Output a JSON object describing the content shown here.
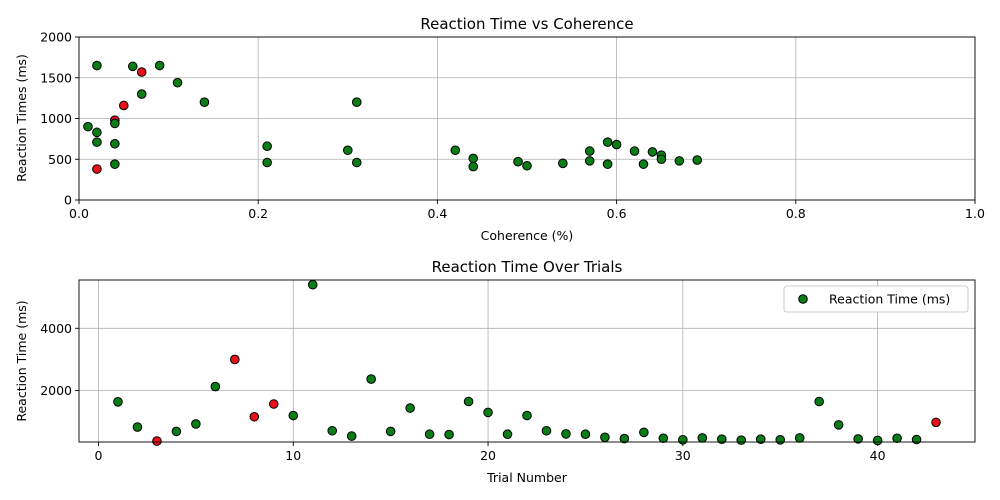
{
  "colors": {
    "normal": "#0a7d17",
    "flagged": "#e8101a"
  },
  "chart_data": [
    {
      "type": "scatter",
      "title": "Reaction Time vs Coherence",
      "xlabel": "Coherence (%)",
      "ylabel": "Reaction Times (ms)",
      "xlim": [
        0,
        1.0
      ],
      "ylim": [
        0,
        2000
      ],
      "xticks": [
        0,
        0.2,
        0.4,
        0.6,
        0.8,
        1.0
      ],
      "xtick_labels": [
        "0.0",
        "0.2",
        "0.4",
        "0.6",
        "0.8",
        "1.0"
      ],
      "yticks": [
        0,
        500,
        1000,
        1500,
        2000
      ],
      "ytick_labels": [
        "0",
        "500",
        "1000",
        "1500",
        "2000"
      ],
      "grid": true,
      "points": [
        {
          "x": 0.01,
          "y": 900,
          "flag": false
        },
        {
          "x": 0.02,
          "y": 1650,
          "flag": false
        },
        {
          "x": 0.02,
          "y": 830,
          "flag": false
        },
        {
          "x": 0.02,
          "y": 710,
          "flag": false
        },
        {
          "x": 0.02,
          "y": 380,
          "flag": true
        },
        {
          "x": 0.04,
          "y": 980,
          "flag": true
        },
        {
          "x": 0.04,
          "y": 940,
          "flag": false
        },
        {
          "x": 0.04,
          "y": 690,
          "flag": false
        },
        {
          "x": 0.04,
          "y": 440,
          "flag": false
        },
        {
          "x": 0.05,
          "y": 1160,
          "flag": true
        },
        {
          "x": 0.06,
          "y": 1640,
          "flag": false
        },
        {
          "x": 0.07,
          "y": 1570,
          "flag": true
        },
        {
          "x": 0.07,
          "y": 1300,
          "flag": false
        },
        {
          "x": 0.09,
          "y": 1650,
          "flag": false
        },
        {
          "x": 0.11,
          "y": 1440,
          "flag": false
        },
        {
          "x": 0.14,
          "y": 1200,
          "flag": false
        },
        {
          "x": 0.21,
          "y": 660,
          "flag": false
        },
        {
          "x": 0.21,
          "y": 460,
          "flag": false
        },
        {
          "x": 0.3,
          "y": 610,
          "flag": false
        },
        {
          "x": 0.31,
          "y": 1200,
          "flag": false
        },
        {
          "x": 0.31,
          "y": 460,
          "flag": false
        },
        {
          "x": 0.42,
          "y": 610,
          "flag": false
        },
        {
          "x": 0.44,
          "y": 510,
          "flag": false
        },
        {
          "x": 0.44,
          "y": 410,
          "flag": false
        },
        {
          "x": 0.49,
          "y": 470,
          "flag": false
        },
        {
          "x": 0.5,
          "y": 420,
          "flag": false
        },
        {
          "x": 0.54,
          "y": 450,
          "flag": false
        },
        {
          "x": 0.57,
          "y": 600,
          "flag": false
        },
        {
          "x": 0.57,
          "y": 480,
          "flag": false
        },
        {
          "x": 0.59,
          "y": 710,
          "flag": false
        },
        {
          "x": 0.59,
          "y": 440,
          "flag": false
        },
        {
          "x": 0.6,
          "y": 680,
          "flag": false
        },
        {
          "x": 0.62,
          "y": 600,
          "flag": false
        },
        {
          "x": 0.63,
          "y": 440,
          "flag": false
        },
        {
          "x": 0.64,
          "y": 590,
          "flag": false
        },
        {
          "x": 0.65,
          "y": 550,
          "flag": false
        },
        {
          "x": 0.65,
          "y": 500,
          "flag": false
        },
        {
          "x": 0.67,
          "y": 480,
          "flag": false
        },
        {
          "x": 0.69,
          "y": 490,
          "flag": false
        }
      ]
    },
    {
      "type": "scatter",
      "title": "Reaction Time Over Trials",
      "xlabel": "Trial Number",
      "ylabel": "Reaction Time (ms)",
      "xlim": [
        -1,
        45
      ],
      "ylim": [
        350,
        5550
      ],
      "xticks": [
        0,
        10,
        20,
        30,
        40
      ],
      "xtick_labels": [
        "0",
        "10",
        "20",
        "30",
        "40"
      ],
      "yticks": [
        2000,
        4000
      ],
      "ytick_labels": [
        "2000",
        "4000"
      ],
      "grid": true,
      "legend": {
        "position": "top-right",
        "label": "Reaction Time (ms)"
      },
      "points": [
        {
          "x": 1,
          "y": 1640,
          "flag": false
        },
        {
          "x": 2,
          "y": 830,
          "flag": false
        },
        {
          "x": 3,
          "y": 380,
          "flag": true
        },
        {
          "x": 4,
          "y": 690,
          "flag": false
        },
        {
          "x": 5,
          "y": 930,
          "flag": false
        },
        {
          "x": 6,
          "y": 2130,
          "flag": false
        },
        {
          "x": 7,
          "y": 3000,
          "flag": true
        },
        {
          "x": 8,
          "y": 1160,
          "flag": true
        },
        {
          "x": 9,
          "y": 1570,
          "flag": true
        },
        {
          "x": 10,
          "y": 1200,
          "flag": false
        },
        {
          "x": 11,
          "y": 5400,
          "flag": false
        },
        {
          "x": 12,
          "y": 710,
          "flag": false
        },
        {
          "x": 13,
          "y": 540,
          "flag": false
        },
        {
          "x": 14,
          "y": 2370,
          "flag": false
        },
        {
          "x": 15,
          "y": 690,
          "flag": false
        },
        {
          "x": 16,
          "y": 1440,
          "flag": false
        },
        {
          "x": 17,
          "y": 600,
          "flag": false
        },
        {
          "x": 18,
          "y": 590,
          "flag": false
        },
        {
          "x": 19,
          "y": 1650,
          "flag": false
        },
        {
          "x": 20,
          "y": 1300,
          "flag": false
        },
        {
          "x": 21,
          "y": 600,
          "flag": false
        },
        {
          "x": 22,
          "y": 1200,
          "flag": false
        },
        {
          "x": 23,
          "y": 710,
          "flag": false
        },
        {
          "x": 24,
          "y": 610,
          "flag": false
        },
        {
          "x": 25,
          "y": 600,
          "flag": false
        },
        {
          "x": 26,
          "y": 500,
          "flag": false
        },
        {
          "x": 27,
          "y": 460,
          "flag": false
        },
        {
          "x": 28,
          "y": 660,
          "flag": false
        },
        {
          "x": 29,
          "y": 470,
          "flag": false
        },
        {
          "x": 30,
          "y": 420,
          "flag": false
        },
        {
          "x": 31,
          "y": 480,
          "flag": false
        },
        {
          "x": 32,
          "y": 440,
          "flag": false
        },
        {
          "x": 33,
          "y": 410,
          "flag": false
        },
        {
          "x": 34,
          "y": 440,
          "flag": false
        },
        {
          "x": 35,
          "y": 420,
          "flag": false
        },
        {
          "x": 36,
          "y": 480,
          "flag": false
        },
        {
          "x": 37,
          "y": 1650,
          "flag": false
        },
        {
          "x": 38,
          "y": 900,
          "flag": false
        },
        {
          "x": 39,
          "y": 450,
          "flag": false
        },
        {
          "x": 40,
          "y": 400,
          "flag": false
        },
        {
          "x": 41,
          "y": 470,
          "flag": false
        },
        {
          "x": 42,
          "y": 430,
          "flag": false
        },
        {
          "x": 43,
          "y": 980,
          "flag": true
        }
      ]
    }
  ]
}
